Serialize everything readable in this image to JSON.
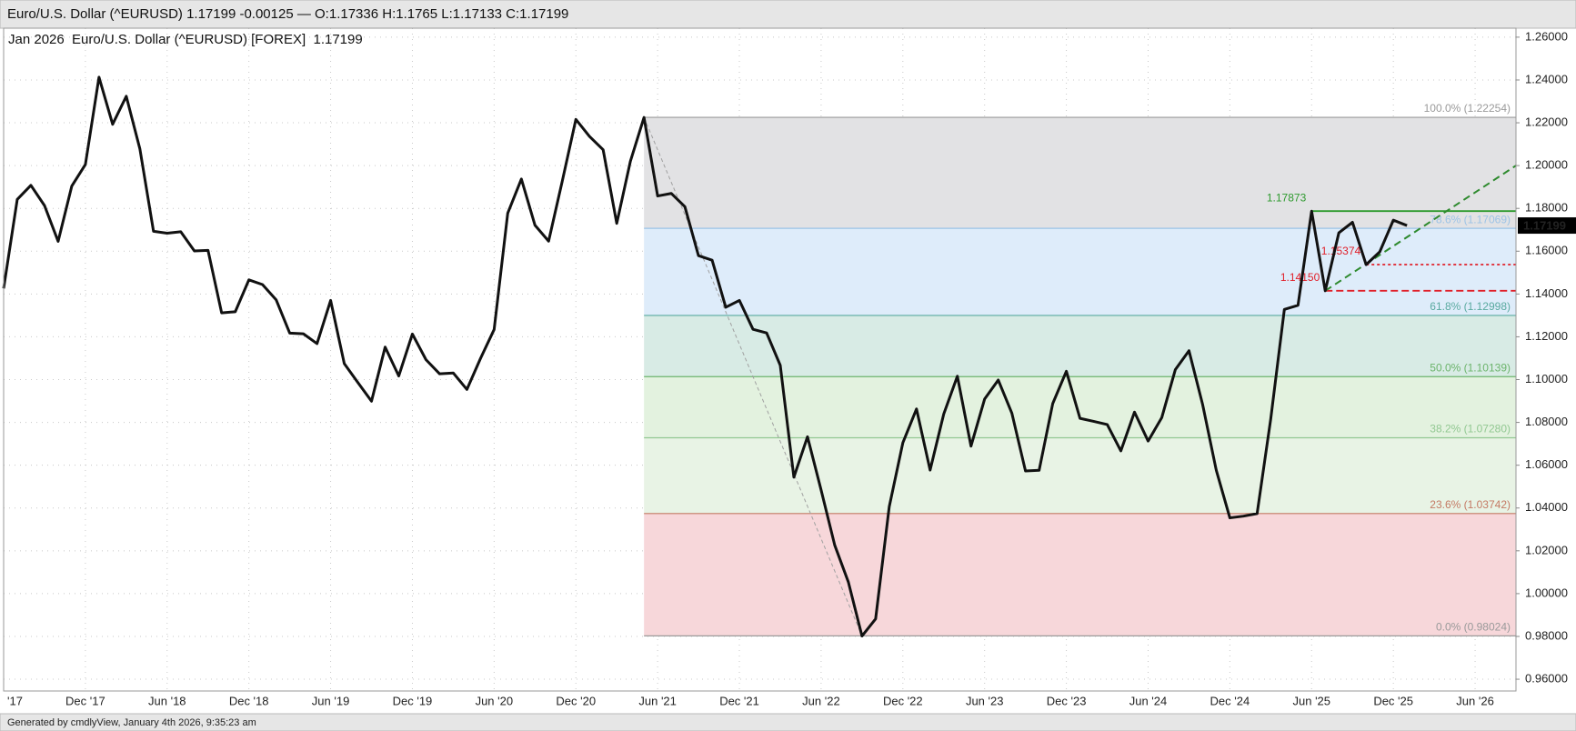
{
  "header": {
    "title": "Euro/U.S. Dollar (^EURUSD) 1.17199 -0.00125 — O:1.17336 H:1.1765 L:1.17133 C:1.17199"
  },
  "footer": {
    "text": "Generated by cmdlyView, January 4th 2026, 9:35:23 am"
  },
  "chart_data": {
    "type": "line",
    "title": "Jan 2026  Euro/U.S. Dollar (^EURUSD) [FOREX]  1.17199",
    "color": "#111111",
    "x": [
      "2017-06",
      "2017-07",
      "2017-08",
      "2017-09",
      "2017-10",
      "2017-11",
      "2017-12",
      "2018-01",
      "2018-02",
      "2018-03",
      "2018-04",
      "2018-05",
      "2018-06",
      "2018-07",
      "2018-08",
      "2018-09",
      "2018-10",
      "2018-11",
      "2018-12",
      "2019-01",
      "2019-02",
      "2019-03",
      "2019-04",
      "2019-05",
      "2019-06",
      "2019-07",
      "2019-08",
      "2019-09",
      "2019-10",
      "2019-11",
      "2019-12",
      "2020-01",
      "2020-02",
      "2020-03",
      "2020-04",
      "2020-05",
      "2020-06",
      "2020-07",
      "2020-08",
      "2020-09",
      "2020-10",
      "2020-11",
      "2020-12",
      "2021-01",
      "2021-02",
      "2021-03",
      "2021-04",
      "2021-05",
      "2021-06",
      "2021-07",
      "2021-08",
      "2021-09",
      "2021-10",
      "2021-11",
      "2021-12",
      "2022-01",
      "2022-02",
      "2022-03",
      "2022-04",
      "2022-05",
      "2022-06",
      "2022-07",
      "2022-08",
      "2022-09",
      "2022-10",
      "2022-11",
      "2022-12",
      "2023-01",
      "2023-02",
      "2023-03",
      "2023-04",
      "2023-05",
      "2023-06",
      "2023-07",
      "2023-08",
      "2023-09",
      "2023-10",
      "2023-11",
      "2023-12",
      "2024-01",
      "2024-02",
      "2024-03",
      "2024-04",
      "2024-05",
      "2024-06",
      "2024-07",
      "2024-08",
      "2024-09",
      "2024-10",
      "2024-11",
      "2024-12",
      "2025-01",
      "2025-02",
      "2025-03",
      "2025-04",
      "2025-05",
      "2025-06",
      "2025-07",
      "2025-08",
      "2025-09",
      "2025-10",
      "2025-11",
      "2025-12",
      "2026-01"
    ],
    "values": [
      1.1426,
      1.1842,
      1.1908,
      1.1813,
      1.1646,
      1.1904,
      1.2005,
      1.2413,
      1.2193,
      1.2324,
      1.2078,
      1.1693,
      1.1684,
      1.1691,
      1.1601,
      1.1604,
      1.1312,
      1.1317,
      1.1466,
      1.1444,
      1.1373,
      1.1217,
      1.1214,
      1.1168,
      1.137,
      1.1075,
      1.0986,
      1.0899,
      1.1152,
      1.1017,
      1.1213,
      1.1093,
      1.1027,
      1.1031,
      1.0954,
      1.1099,
      1.1234,
      1.1778,
      1.1937,
      1.1721,
      1.1647,
      1.1927,
      1.2216,
      1.2136,
      1.2074,
      1.173,
      1.202,
      1.2225,
      1.1858,
      1.187,
      1.1808,
      1.1579,
      1.1558,
      1.1338,
      1.137,
      1.1235,
      1.1218,
      1.1067,
      1.0544,
      1.0733,
      1.0484,
      1.0226,
      1.0054,
      0.9802,
      0.9882,
      1.0406,
      1.0705,
      1.0863,
      1.0577,
      1.0839,
      1.1016,
      1.0689,
      1.0909,
      1.0998,
      1.0843,
      1.0573,
      1.0576,
      1.0888,
      1.1039,
      1.0819,
      1.0805,
      1.079,
      1.0667,
      1.0848,
      1.0713,
      1.0822,
      1.1047,
      1.1135,
      1.0884,
      1.0577,
      1.0354,
      1.0362,
      1.0374,
      1.0816,
      1.1328,
      1.1347,
      1.1787,
      1.1415,
      1.1686,
      1.1735,
      1.1537,
      1.1597,
      1.1745,
      1.17199
    ],
    "xlim": [
      "2017-06",
      "2026-09"
    ],
    "xticks": [
      {
        "value": "2017-06",
        "label": "'17"
      },
      {
        "value": "2017-12",
        "label": "Dec '17"
      },
      {
        "value": "2018-06",
        "label": "Jun '18"
      },
      {
        "value": "2018-12",
        "label": "Dec '18"
      },
      {
        "value": "2019-06",
        "label": "Jun '19"
      },
      {
        "value": "2019-12",
        "label": "Dec '19"
      },
      {
        "value": "2020-06",
        "label": "Jun '20"
      },
      {
        "value": "2020-12",
        "label": "Dec '20"
      },
      {
        "value": "2021-06",
        "label": "Jun '21"
      },
      {
        "value": "2021-12",
        "label": "Dec '21"
      },
      {
        "value": "2022-06",
        "label": "Jun '22"
      },
      {
        "value": "2022-12",
        "label": "Dec '22"
      },
      {
        "value": "2023-06",
        "label": "Jun '23"
      },
      {
        "value": "2023-12",
        "label": "Dec '23"
      },
      {
        "value": "2024-06",
        "label": "Jun '24"
      },
      {
        "value": "2024-12",
        "label": "Dec '24"
      },
      {
        "value": "2025-06",
        "label": "Jun '25"
      },
      {
        "value": "2025-12",
        "label": "Dec '25"
      },
      {
        "value": "2026-06",
        "label": "Jun '26"
      }
    ],
    "ylim": [
      0.9545,
      1.2642
    ],
    "yticks": [
      {
        "value": 0.96,
        "label": "0.96000"
      },
      {
        "value": 0.98,
        "label": "0.98000"
      },
      {
        "value": 1.0,
        "label": "1.00000"
      },
      {
        "value": 1.02,
        "label": "1.02000"
      },
      {
        "value": 1.04,
        "label": "1.04000"
      },
      {
        "value": 1.06,
        "label": "1.06000"
      },
      {
        "value": 1.08,
        "label": "1.08000"
      },
      {
        "value": 1.1,
        "label": "1.10000"
      },
      {
        "value": 1.12,
        "label": "1.12000"
      },
      {
        "value": 1.14,
        "label": "1.14000"
      },
      {
        "value": 1.16,
        "label": "1.16000"
      },
      {
        "value": 1.18,
        "label": "1.18000"
      },
      {
        "value": 1.2,
        "label": "1.20000"
      },
      {
        "value": 1.22,
        "label": "1.22000"
      },
      {
        "value": 1.24,
        "label": "1.24000"
      },
      {
        "value": 1.26,
        "label": "1.26000"
      }
    ],
    "grid": true,
    "last_price": {
      "value": 1.17199,
      "label": "1.17199"
    },
    "fibonacci": {
      "from": "2021-05",
      "to": "2022-09",
      "levels": [
        {
          "value": 1.22254,
          "label": "100.0% (1.22254)",
          "color": "#9a9a9a",
          "fill": "#e2e2e4"
        },
        {
          "value": 1.17069,
          "label": "78.6% (1.17069)",
          "color": "#9cc3e6",
          "fill": "#deecfa"
        },
        {
          "value": 1.12998,
          "label": "61.8% (1.12998)",
          "color": "#5aaaa0",
          "fill": "#d8ebe5"
        },
        {
          "value": 1.10139,
          "label": "50.0% (1.10139)",
          "color": "#6cb46c",
          "fill": "#e3f2df"
        },
        {
          "value": 1.0728,
          "label": "38.2% (1.07280)",
          "color": "#92c892",
          "fill": "#e8f3e5"
        },
        {
          "value": 1.03742,
          "label": "23.6% (1.03742)",
          "color": "#c47a64",
          "fill": "#f7d7da"
        },
        {
          "value": 0.98024,
          "label": "0.0% (0.98024)",
          "color": "#9a9a9a"
        }
      ]
    },
    "annotations": [
      {
        "value": 1.17873,
        "label": "1.17873",
        "from": "2025-06",
        "color": "#2e9a2e",
        "style": "solid"
      },
      {
        "value": 1.15374,
        "label": "1.15374",
        "from": "2025-10",
        "color": "#e0202a",
        "style": "dotted"
      },
      {
        "value": 1.1415,
        "label": "1.14150",
        "from": "2025-07",
        "color": "#e0202a",
        "style": "dashed"
      }
    ],
    "trendline": {
      "x": [
        "2025-07",
        "2026-09"
      ],
      "y": [
        1.1415,
        1.2
      ],
      "color": "#2e8a2e"
    }
  }
}
